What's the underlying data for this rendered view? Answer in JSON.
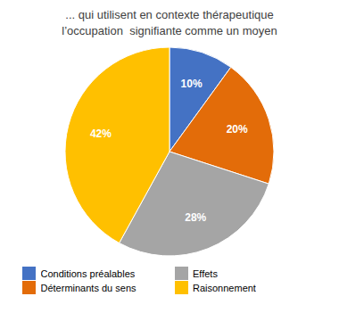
{
  "chart_data": {
    "type": "pie",
    "title": "... qui utilisent en contexte thérapeutique\nl’occupation  signifiante comme un moyen",
    "categories": [
      "Conditions préalables",
      "Déterminants du sens",
      "Effets",
      "Raisonnement"
    ],
    "values": [
      10,
      20,
      28,
      42
    ],
    "value_labels": [
      "10%",
      "20%",
      "28%",
      "42%"
    ],
    "data_labels": true,
    "colors": [
      "#4472C4",
      "#E36C09",
      "#A5A5A5",
      "#FFC000"
    ],
    "legend": "bottom"
  }
}
